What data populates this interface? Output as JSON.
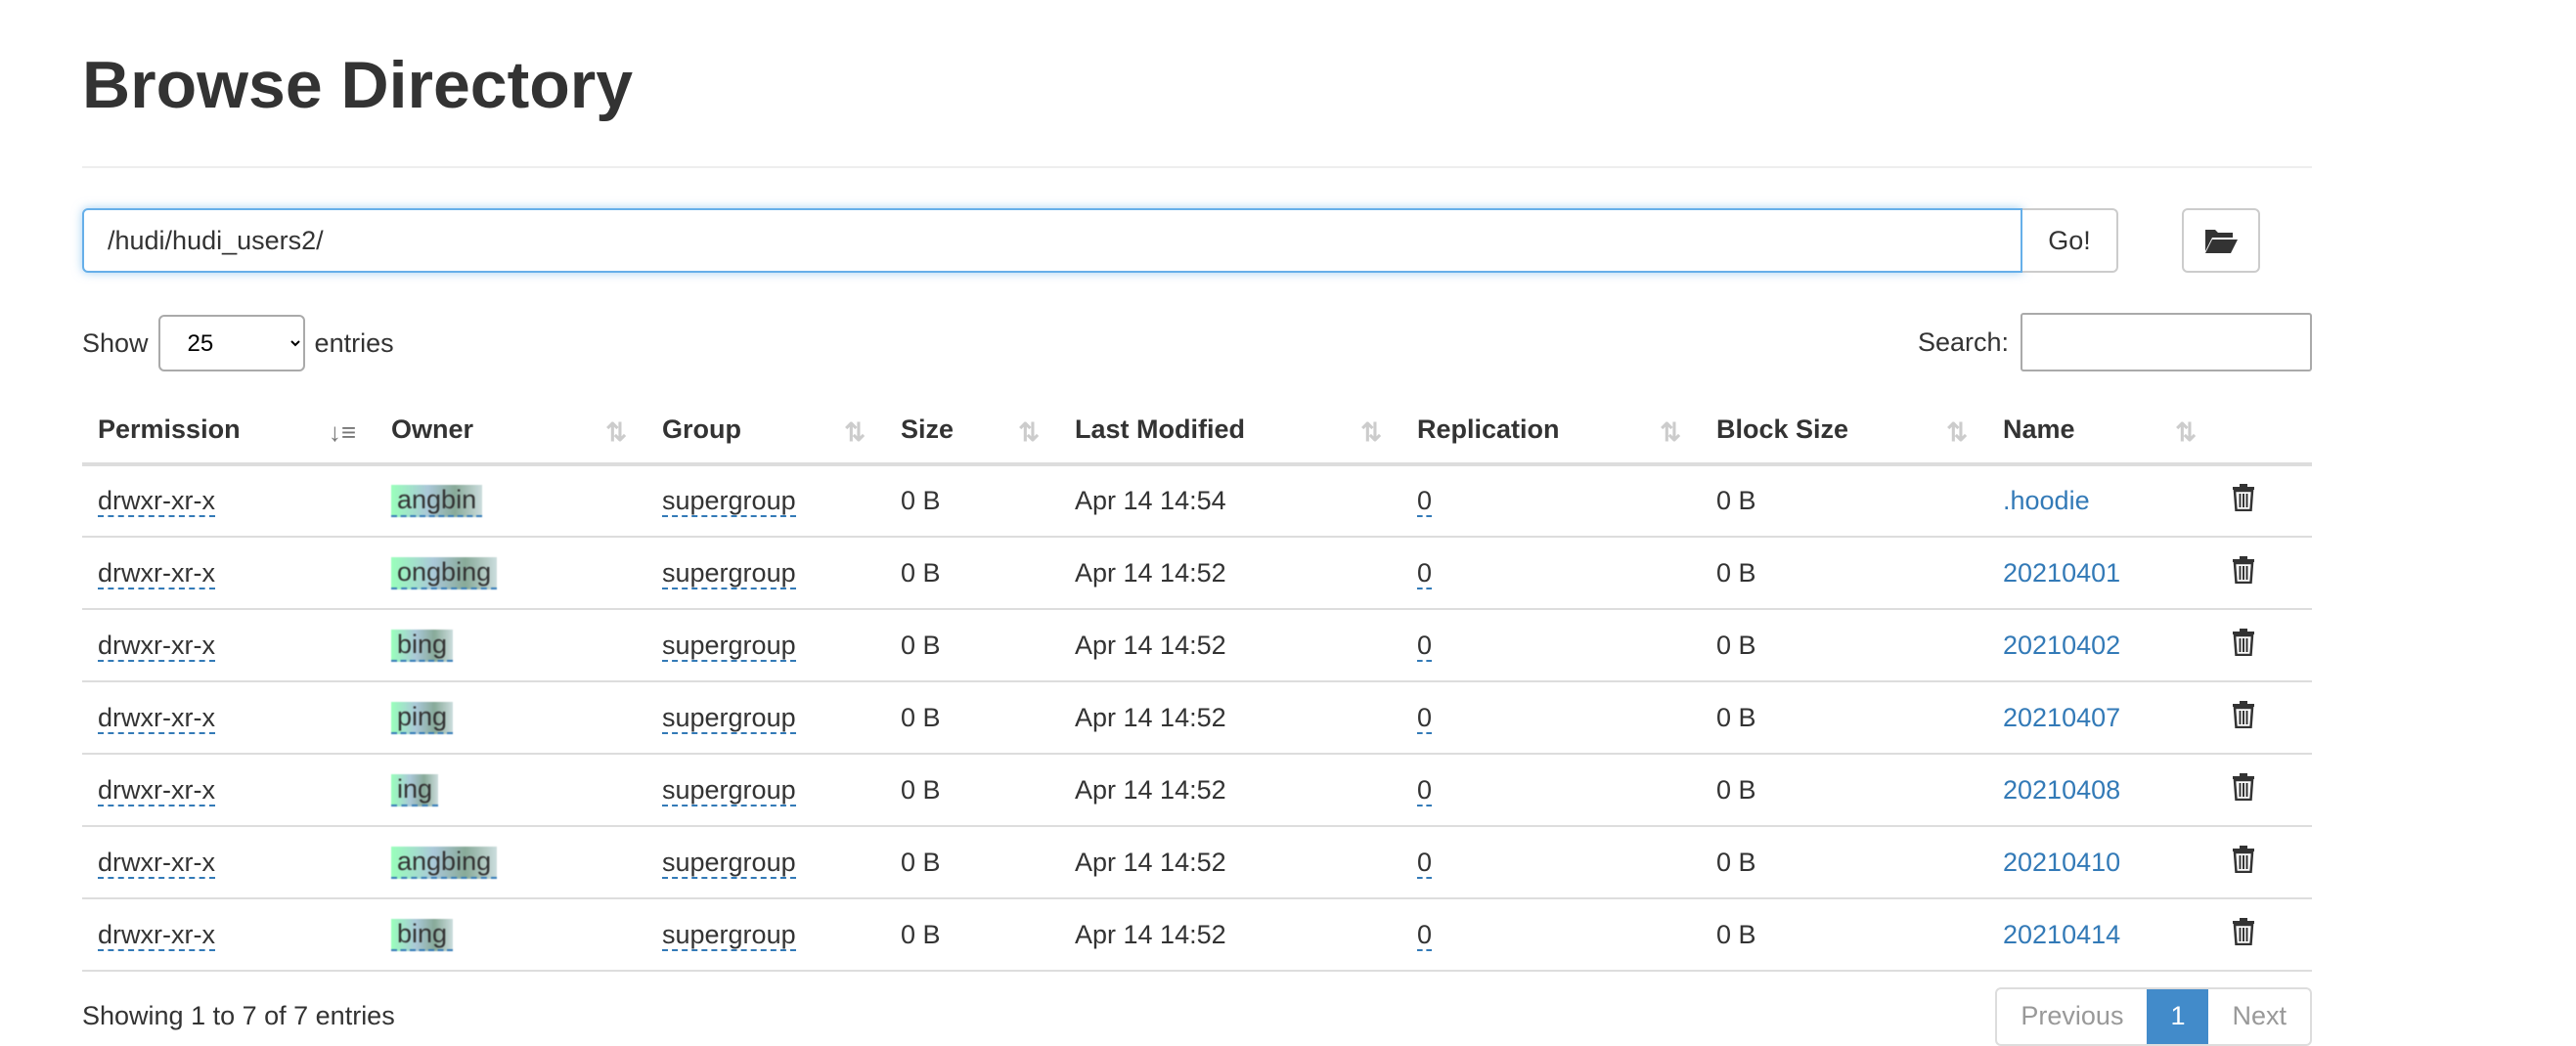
{
  "title": "Browse Directory",
  "path_value": "/hudi/hudi_users2/",
  "go_label": "Go!",
  "show_label": "Show",
  "entries_label": "entries",
  "page_size": "25",
  "search_label": "Search:",
  "columns": [
    "Permission",
    "Owner",
    "Group",
    "Size",
    "Last Modified",
    "Replication",
    "Block Size",
    "Name"
  ],
  "rows": [
    {
      "perm": "drwxr-xr-x",
      "owner": "angbin",
      "group": "supergroup",
      "size": "0 B",
      "mod": "Apr 14 14:54",
      "rep": "0",
      "bs": "0 B",
      "name": ".hoodie"
    },
    {
      "perm": "drwxr-xr-x",
      "owner": "ongbing",
      "group": "supergroup",
      "size": "0 B",
      "mod": "Apr 14 14:52",
      "rep": "0",
      "bs": "0 B",
      "name": "20210401"
    },
    {
      "perm": "drwxr-xr-x",
      "owner": "bing",
      "group": "supergroup",
      "size": "0 B",
      "mod": "Apr 14 14:52",
      "rep": "0",
      "bs": "0 B",
      "name": "20210402"
    },
    {
      "perm": "drwxr-xr-x",
      "owner": "ping",
      "group": "supergroup",
      "size": "0 B",
      "mod": "Apr 14 14:52",
      "rep": "0",
      "bs": "0 B",
      "name": "20210407"
    },
    {
      "perm": "drwxr-xr-x",
      "owner": "ing",
      "group": "supergroup",
      "size": "0 B",
      "mod": "Apr 14 14:52",
      "rep": "0",
      "bs": "0 B",
      "name": "20210408"
    },
    {
      "perm": "drwxr-xr-x",
      "owner": "angbing",
      "group": "supergroup",
      "size": "0 B",
      "mod": "Apr 14 14:52",
      "rep": "0",
      "bs": "0 B",
      "name": "20210410"
    },
    {
      "perm": "drwxr-xr-x",
      "owner": "bing",
      "group": "supergroup",
      "size": "0 B",
      "mod": "Apr 14 14:52",
      "rep": "0",
      "bs": "0 B",
      "name": "20210414"
    }
  ],
  "footer": "Showing 1 to 7 of 7 entries",
  "pagination": {
    "prev": "Previous",
    "current": "1",
    "next": "Next"
  },
  "colors": {
    "link": "#337ab7",
    "active_page": "#428bca"
  }
}
